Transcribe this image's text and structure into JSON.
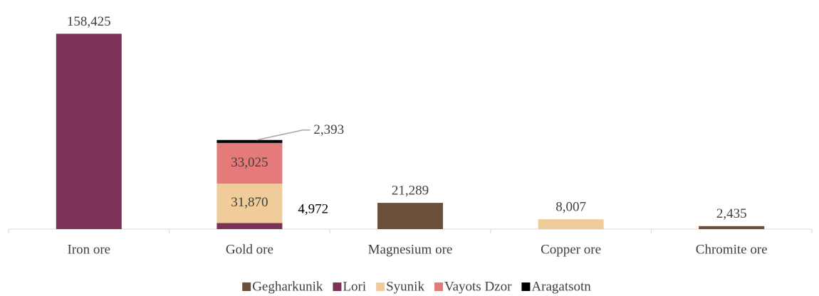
{
  "chart_data": {
    "type": "stacked_bar",
    "categories": [
      "Iron ore",
      "Gold ore",
      "Magnesium ore",
      "Copper ore",
      "Chromite ore"
    ],
    "series": [
      {
        "name": "Gegharkunik",
        "color": "#6b4f3a",
        "values": [
          null,
          null,
          21289,
          null,
          2435
        ],
        "value_labels": [
          null,
          null,
          "21,289",
          null,
          "2,435"
        ]
      },
      {
        "name": "Lori",
        "color": "#7b3259",
        "values": [
          158425,
          4972,
          null,
          null,
          null
        ],
        "value_labels": [
          "158,425",
          "4,972",
          null,
          null,
          null
        ]
      },
      {
        "name": "Syunik",
        "color": "#f0cc9a",
        "values": [
          null,
          31870,
          null,
          8007,
          null
        ],
        "value_labels": [
          null,
          "31,870",
          null,
          "8,007",
          null
        ]
      },
      {
        "name": "Vayots Dzor",
        "color": "#e57a7a",
        "values": [
          null,
          33025,
          null,
          null,
          null
        ],
        "value_labels": [
          null,
          "33,025",
          null,
          null,
          null
        ]
      },
      {
        "name": "Aragatsotn",
        "color": "#000000",
        "values": [
          null,
          2393,
          null,
          null,
          null
        ],
        "value_labels": [
          null,
          "2,393",
          null,
          null,
          null
        ]
      }
    ],
    "ylim": [
      0,
      180000
    ],
    "legend": "bottom"
  }
}
